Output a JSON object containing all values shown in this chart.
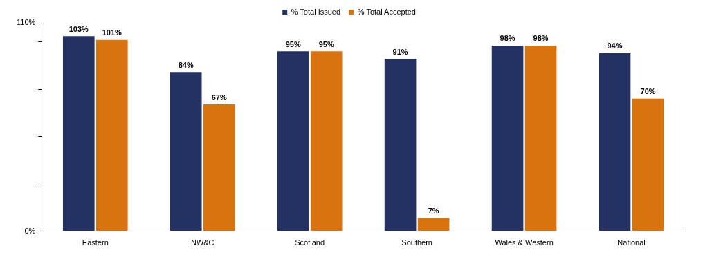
{
  "chart_data": {
    "type": "bar",
    "categories": [
      "Eastern",
      "NW&C",
      "Scotland",
      "Southern",
      "Wales & Western",
      "National"
    ],
    "series": [
      {
        "name": "% Total Issued",
        "color": "#233163",
        "values": [
          103,
          84,
          95,
          91,
          98,
          94
        ],
        "value_labels": [
          "103%",
          "84%",
          "95%",
          "91%",
          "98%",
          "94%"
        ]
      },
      {
        "name": "% Total Accepted",
        "color": "#d9730d",
        "values": [
          101,
          67,
          95,
          7,
          98,
          70
        ],
        "value_labels": [
          "101%",
          "67%",
          "95%",
          "7%",
          "98%",
          "70%"
        ]
      }
    ],
    "ylim": [
      0,
      110
    ],
    "yticks": [
      {
        "value": 0,
        "label": "0%"
      },
      {
        "value": 25,
        "label": null
      },
      {
        "value": 50,
        "label": null
      },
      {
        "value": 75,
        "label": null
      },
      {
        "value": 100,
        "label": null
      },
      {
        "value": 110,
        "label": "110%"
      }
    ],
    "legend": "top"
  }
}
